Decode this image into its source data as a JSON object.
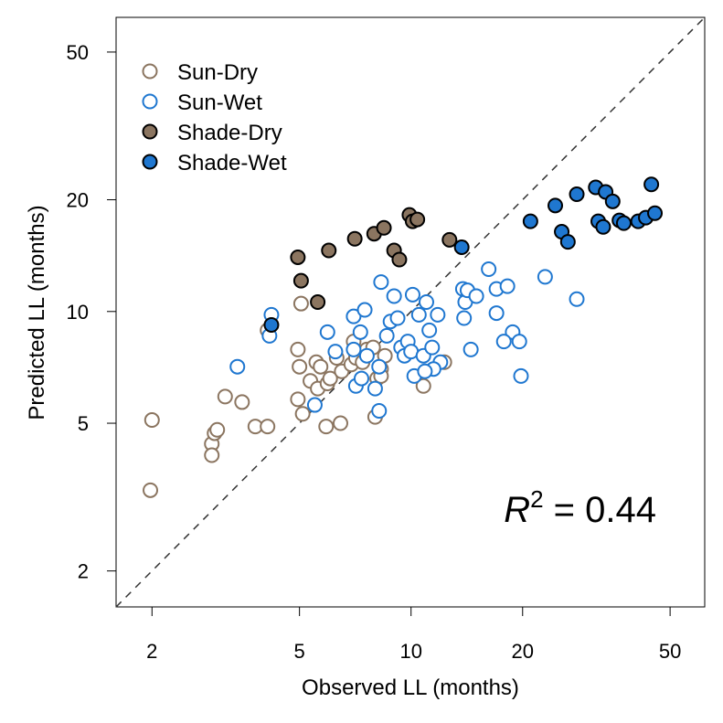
{
  "chart_data": {
    "type": "scatter",
    "title": "",
    "xlabel": "Observed LL (months)",
    "ylabel": "Predicted LL (months)",
    "x_scale": "log",
    "y_scale": "log",
    "xlim": [
      1.6,
      62
    ],
    "ylim": [
      1.6,
      62
    ],
    "x_ticks": [
      2,
      5,
      10,
      20,
      50
    ],
    "y_ticks": [
      2,
      5,
      10,
      20,
      50
    ],
    "grid": false,
    "legend_position": "top-left",
    "reference_line": "1:1 dashed",
    "annotation": {
      "text_base": "R",
      "text_sup": "2",
      "text_rest": " = 0.44"
    },
    "series": [
      {
        "name": "Sun-Dry",
        "marker": "open-circle",
        "color": "#8b7560",
        "points": [
          [
            2.0,
            5.1
          ],
          [
            1.98,
            3.3
          ],
          [
            2.9,
            4.4
          ],
          [
            2.95,
            4.7
          ],
          [
            3.0,
            4.8
          ],
          [
            2.9,
            4.1
          ],
          [
            3.15,
            5.9
          ],
          [
            3.5,
            5.7
          ],
          [
            3.8,
            4.9
          ],
          [
            4.1,
            4.9
          ],
          [
            4.1,
            8.9
          ],
          [
            4.95,
            7.9
          ],
          [
            5.05,
            10.5
          ],
          [
            5.0,
            7.1
          ],
          [
            4.95,
            5.8
          ],
          [
            5.1,
            5.3
          ],
          [
            5.35,
            6.5
          ],
          [
            5.55,
            7.3
          ],
          [
            5.7,
            7.1
          ],
          [
            5.6,
            6.2
          ],
          [
            5.95,
            6.4
          ],
          [
            6.05,
            6.6
          ],
          [
            6.3,
            7.5
          ],
          [
            6.5,
            6.9
          ],
          [
            6.45,
            5.0
          ],
          [
            5.9,
            4.9
          ],
          [
            6.9,
            7.2
          ],
          [
            7.0,
            8.3
          ],
          [
            7.1,
            7.5
          ],
          [
            7.4,
            7.3
          ],
          [
            7.6,
            7.9
          ],
          [
            7.9,
            8.0
          ],
          [
            8.1,
            6.6
          ],
          [
            8.3,
            7.0
          ],
          [
            8.5,
            7.6
          ],
          [
            8.3,
            6.7
          ],
          [
            8.0,
            5.2
          ],
          [
            10.8,
            6.3
          ],
          [
            12.3,
            7.3
          ]
        ]
      },
      {
        "name": "Sun-Wet",
        "marker": "open-circle",
        "color": "#1f77d0",
        "points": [
          [
            3.4,
            7.1
          ],
          [
            4.2,
            9.8
          ],
          [
            4.15,
            8.6
          ],
          [
            5.5,
            5.6
          ],
          [
            5.95,
            8.8
          ],
          [
            6.25,
            7.8
          ],
          [
            7.0,
            7.9
          ],
          [
            7.3,
            8.8
          ],
          [
            7.0,
            9.7
          ],
          [
            7.5,
            10.1
          ],
          [
            7.1,
            6.3
          ],
          [
            7.35,
            6.6
          ],
          [
            7.6,
            7.6
          ],
          [
            8.0,
            6.2
          ],
          [
            8.2,
            7.1
          ],
          [
            8.3,
            12.0
          ],
          [
            8.6,
            8.6
          ],
          [
            8.8,
            9.4
          ],
          [
            9.0,
            11.0
          ],
          [
            9.2,
            9.6
          ],
          [
            9.4,
            8.0
          ],
          [
            9.6,
            7.6
          ],
          [
            9.8,
            8.3
          ],
          [
            10.0,
            7.8
          ],
          [
            10.1,
            11.1
          ],
          [
            10.2,
            6.7
          ],
          [
            10.5,
            9.8
          ],
          [
            10.8,
            7.6
          ],
          [
            11.0,
            10.6
          ],
          [
            11.2,
            8.9
          ],
          [
            11.4,
            8.0
          ],
          [
            11.8,
            9.8
          ],
          [
            12.0,
            7.3
          ],
          [
            11.5,
            7.0
          ],
          [
            10.9,
            6.9
          ],
          [
            8.2,
            5.4
          ],
          [
            13.8,
            11.5
          ],
          [
            14.0,
            10.6
          ],
          [
            14.2,
            11.4
          ],
          [
            13.9,
            9.6
          ],
          [
            15.0,
            11.0
          ],
          [
            14.5,
            7.9
          ],
          [
            16.2,
            13.0
          ],
          [
            17.0,
            11.5
          ],
          [
            17.0,
            9.9
          ],
          [
            18.2,
            11.7
          ],
          [
            18.8,
            8.8
          ],
          [
            19.6,
            8.3
          ],
          [
            17.8,
            8.3
          ],
          [
            19.8,
            6.7
          ],
          [
            23.0,
            12.4
          ],
          [
            28.0,
            10.8
          ]
        ]
      },
      {
        "name": "Shade-Dry",
        "marker": "filled-circle",
        "color": "#8b7560",
        "points": [
          [
            4.95,
            14.0
          ],
          [
            5.05,
            12.1
          ],
          [
            5.6,
            10.6
          ],
          [
            6.0,
            14.6
          ],
          [
            7.05,
            15.7
          ],
          [
            7.95,
            16.2
          ],
          [
            8.45,
            16.8
          ],
          [
            9.0,
            14.6
          ],
          [
            9.3,
            13.8
          ],
          [
            9.9,
            18.2
          ],
          [
            10.1,
            17.5
          ],
          [
            10.4,
            17.7
          ],
          [
            12.7,
            15.6
          ]
        ]
      },
      {
        "name": "Shade-Wet",
        "marker": "filled-circle",
        "color": "#1f77d0",
        "points": [
          [
            4.2,
            9.2
          ],
          [
            13.7,
            14.9
          ],
          [
            21.0,
            17.5
          ],
          [
            24.5,
            19.3
          ],
          [
            25.5,
            16.4
          ],
          [
            26.5,
            15.4
          ],
          [
            28.0,
            20.7
          ],
          [
            31.5,
            21.6
          ],
          [
            32.0,
            17.5
          ],
          [
            33.0,
            16.9
          ],
          [
            33.5,
            21.0
          ],
          [
            35.0,
            19.8
          ],
          [
            36.5,
            17.6
          ],
          [
            37.5,
            17.3
          ],
          [
            41.0,
            17.5
          ],
          [
            43.0,
            17.9
          ],
          [
            44.5,
            22.0
          ],
          [
            45.5,
            18.4
          ]
        ]
      }
    ]
  }
}
